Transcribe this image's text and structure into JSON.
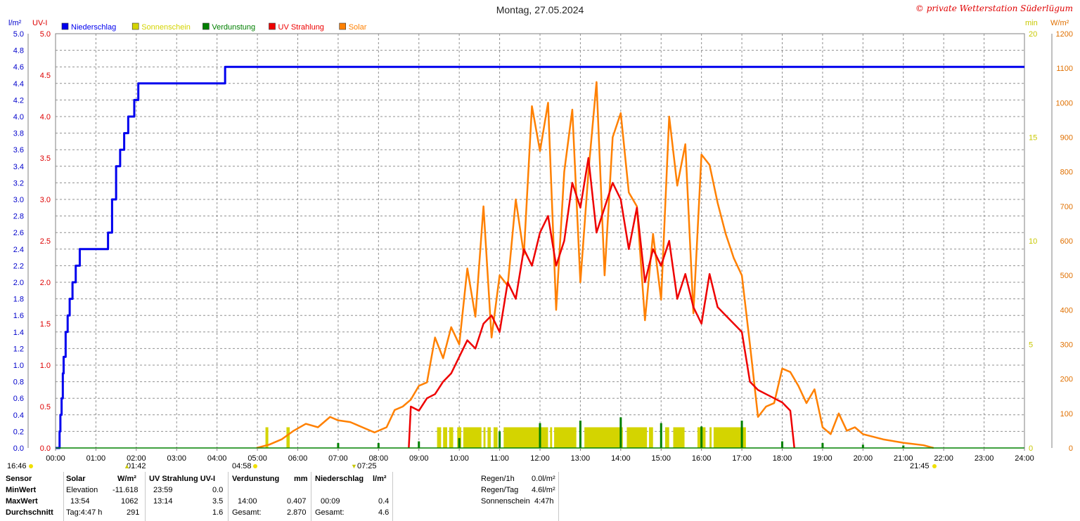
{
  "title": "Montag, 27.05.2024",
  "copyright": "© private Wetterstation Süderlügum",
  "legend": [
    {
      "label": "Niederschlag",
      "color": "#0000ee"
    },
    {
      "label": "Sonnenschein",
      "color": "#d4d400"
    },
    {
      "label": "Verdunstung",
      "color": "#008000"
    },
    {
      "label": "UV Strahlung",
      "color": "#ee0000"
    },
    {
      "label": "Solar",
      "color": "#ff8000"
    }
  ],
  "axis_units": {
    "left1": "l/m²",
    "left2": "UV-I",
    "right1": "min",
    "right2": "W/m²"
  },
  "sun_markers": {
    "left_label": "16:46",
    "rise_label": "04:58",
    "set_label": "21:45",
    "moon1": "01:42",
    "moon2": "07:25"
  },
  "chart_data": {
    "type": "line",
    "x_axis": {
      "range": [
        "00:00",
        "24:00"
      ],
      "ticks": [
        "00:00",
        "01:00",
        "02:00",
        "03:00",
        "04:00",
        "05:00",
        "06:00",
        "07:00",
        "08:00",
        "09:00",
        "10:00",
        "11:00",
        "12:00",
        "13:00",
        "14:00",
        "15:00",
        "16:00",
        "17:00",
        "18:00",
        "19:00",
        "20:00",
        "21:00",
        "22:00",
        "23:00",
        "24:00"
      ]
    },
    "y_axes": {
      "precip": {
        "unit": "l/m²",
        "range": [
          0,
          5.0
        ],
        "ticks": [
          "0.0",
          "0.2",
          "0.4",
          "0.6",
          "0.8",
          "1.0",
          "1.2",
          "1.4",
          "1.6",
          "1.8",
          "2.0",
          "2.2",
          "2.4",
          "2.6",
          "2.8",
          "3.0",
          "3.2",
          "3.4",
          "3.6",
          "3.8",
          "4.0",
          "4.2",
          "4.4",
          "4.6",
          "4.8",
          "5.0"
        ]
      },
      "uv": {
        "unit": "UV-I",
        "range": [
          0,
          5.0
        ],
        "ticks": [
          "0.0",
          "0.5",
          "1.0",
          "1.5",
          "2.0",
          "2.5",
          "3.0",
          "3.5",
          "4.0",
          "4.5",
          "5.0"
        ]
      },
      "sunshine": {
        "unit": "min",
        "range": [
          0,
          20
        ],
        "ticks": [
          "0",
          "5",
          "10",
          "15",
          "20"
        ]
      },
      "solar": {
        "unit": "W/m²",
        "range": [
          0,
          1200
        ],
        "ticks": [
          "0",
          "100",
          "200",
          "300",
          "400",
          "500",
          "600",
          "700",
          "800",
          "900",
          "1000",
          "1100",
          "1200"
        ]
      }
    },
    "grid": true,
    "series": [
      {
        "name": "Niederschlag",
        "axis": "precip",
        "color": "#0000ee",
        "step": true,
        "x": [
          0.0,
          0.1,
          0.12,
          0.15,
          0.18,
          0.2,
          0.25,
          0.3,
          0.35,
          0.42,
          0.5,
          0.6,
          0.75,
          1.3,
          1.4,
          1.5,
          1.6,
          1.7,
          1.8,
          1.95,
          2.05,
          2.15,
          4.15,
          4.2,
          24.0
        ],
        "y": [
          0.0,
          0.2,
          0.4,
          0.6,
          0.9,
          1.1,
          1.4,
          1.6,
          1.8,
          2.0,
          2.2,
          2.4,
          2.4,
          2.6,
          3.0,
          3.4,
          3.6,
          3.8,
          4.0,
          4.2,
          4.4,
          4.4,
          4.4,
          4.6,
          4.6
        ]
      },
      {
        "name": "Solar",
        "axis": "solar",
        "color": "#ff8000",
        "x": [
          4.98,
          5.3,
          5.6,
          5.9,
          6.2,
          6.5,
          6.8,
          7.0,
          7.3,
          7.6,
          7.9,
          8.2,
          8.4,
          8.6,
          8.8,
          9.0,
          9.2,
          9.4,
          9.6,
          9.8,
          10.0,
          10.2,
          10.4,
          10.6,
          10.8,
          11.0,
          11.2,
          11.4,
          11.6,
          11.8,
          12.0,
          12.2,
          12.4,
          12.6,
          12.8,
          13.0,
          13.2,
          13.4,
          13.6,
          13.8,
          14.0,
          14.2,
          14.4,
          14.6,
          14.8,
          15.0,
          15.2,
          15.4,
          15.6,
          15.8,
          16.0,
          16.2,
          16.4,
          16.6,
          16.8,
          17.0,
          17.2,
          17.4,
          17.6,
          17.8,
          18.0,
          18.2,
          18.4,
          18.6,
          18.8,
          19.0,
          19.2,
          19.4,
          19.6,
          19.8,
          20.0,
          20.5,
          21.0,
          21.5,
          21.75
        ],
        "y": [
          0,
          10,
          25,
          50,
          70,
          60,
          90,
          80,
          75,
          60,
          45,
          60,
          110,
          120,
          140,
          180,
          190,
          320,
          260,
          350,
          300,
          520,
          380,
          700,
          320,
          500,
          470,
          720,
          560,
          990,
          860,
          1000,
          400,
          800,
          980,
          480,
          800,
          1060,
          500,
          900,
          970,
          740,
          700,
          370,
          620,
          430,
          960,
          760,
          880,
          390,
          850,
          820,
          710,
          620,
          550,
          500,
          300,
          90,
          120,
          130,
          230,
          220,
          180,
          130,
          170,
          60,
          40,
          100,
          50,
          60,
          40,
          25,
          15,
          8,
          0
        ]
      },
      {
        "name": "UV Strahlung",
        "axis": "uv",
        "color": "#ee0000",
        "x": [
          8.75,
          8.8,
          9.0,
          9.2,
          9.4,
          9.6,
          9.8,
          10.0,
          10.2,
          10.4,
          10.6,
          10.8,
          11.0,
          11.2,
          11.4,
          11.6,
          11.8,
          12.0,
          12.2,
          12.4,
          12.6,
          12.8,
          13.0,
          13.2,
          13.4,
          13.6,
          13.8,
          14.0,
          14.2,
          14.4,
          14.6,
          14.8,
          15.0,
          15.2,
          15.4,
          15.6,
          15.8,
          16.0,
          16.2,
          16.4,
          16.6,
          16.8,
          17.0,
          17.2,
          17.4,
          17.6,
          17.8,
          18.0,
          18.2,
          18.3
        ],
        "y": [
          0,
          0.5,
          0.45,
          0.6,
          0.65,
          0.8,
          0.9,
          1.1,
          1.3,
          1.2,
          1.5,
          1.6,
          1.4,
          2.0,
          1.8,
          2.4,
          2.2,
          2.6,
          2.8,
          2.2,
          2.5,
          3.2,
          2.9,
          3.5,
          2.6,
          2.9,
          3.2,
          3.0,
          2.4,
          2.9,
          2.0,
          2.4,
          2.2,
          2.5,
          1.8,
          2.1,
          1.7,
          1.5,
          2.1,
          1.7,
          1.6,
          1.5,
          1.4,
          0.8,
          0.7,
          0.65,
          0.6,
          0.55,
          0.45,
          0.0
        ]
      },
      {
        "name": "Sonnenschein",
        "axis": "sunshine",
        "color": "#d4d400",
        "bars": [
          [
            5.2,
            5.27,
            1.0
          ],
          [
            5.72,
            5.8,
            1.0
          ],
          [
            9.45,
            9.55,
            1.0
          ],
          [
            9.6,
            9.7,
            1.0
          ],
          [
            9.75,
            9.85,
            1.0
          ],
          [
            9.95,
            10.05,
            1.0
          ],
          [
            10.1,
            10.55,
            1.0
          ],
          [
            10.6,
            10.65,
            1.0
          ],
          [
            10.7,
            10.78,
            1.0
          ],
          [
            10.85,
            10.95,
            1.0
          ],
          [
            11.1,
            12.2,
            1.0
          ],
          [
            12.25,
            12.3,
            1.0
          ],
          [
            12.35,
            12.9,
            1.0
          ],
          [
            13.1,
            14.05,
            1.0
          ],
          [
            14.15,
            14.65,
            1.0
          ],
          [
            14.7,
            14.8,
            1.0
          ],
          [
            15.1,
            15.2,
            1.0
          ],
          [
            15.3,
            15.58,
            1.0
          ],
          [
            15.9,
            16.1,
            1.0
          ],
          [
            16.2,
            16.25,
            1.0
          ],
          [
            16.3,
            17.1,
            1.0
          ]
        ]
      },
      {
        "name": "Verdunstung",
        "axis": "uv",
        "color": "#008000",
        "bars": [
          [
            7.0,
            0.06
          ],
          [
            8.0,
            0.06
          ],
          [
            9.0,
            0.08
          ],
          [
            10.0,
            0.12
          ],
          [
            11.0,
            0.2
          ],
          [
            12.0,
            0.3
          ],
          [
            13.0,
            0.33
          ],
          [
            14.0,
            0.37
          ],
          [
            15.0,
            0.3
          ],
          [
            16.0,
            0.26
          ],
          [
            17.0,
            0.33
          ],
          [
            18.0,
            0.08
          ],
          [
            19.0,
            0.06
          ],
          [
            20.0,
            0.04
          ],
          [
            21.0,
            0.03
          ]
        ]
      }
    ]
  },
  "stats": {
    "headers": {
      "sensor": "Sensor",
      "solar": "Solar",
      "solar_unit": "W/m²",
      "uv": "UV Strahlung UV-I",
      "evap": "Verdunstung",
      "evap_unit": "mm",
      "precip": "Niederschlag",
      "precip_unit": "l/m²"
    },
    "rows": {
      "min": "MinWert",
      "max": "MaxWert",
      "avg": "Durchschnitt"
    },
    "solar": {
      "min_label": "Elevation",
      "min_val": "-11.618",
      "max_time": "13:54",
      "max_val": "1062",
      "avg_label": "Tag:4:47 h",
      "avg_val": "291"
    },
    "uv": {
      "min_time": "23:59",
      "min_val": "0.0",
      "max_time": "13:14",
      "max_val": "3.5",
      "avg_val": "1.6"
    },
    "evap": {
      "max_time": "14:00",
      "max_val": "0.407",
      "total_label": "Gesamt:",
      "total_val": "2.870"
    },
    "precip": {
      "max_time": "00:09",
      "max_val": "0.4",
      "total_label": "Gesamt:",
      "total_val": "4.6"
    },
    "summary": {
      "r1_label": "Regen/1h",
      "r1_val": "0.0l/m²",
      "r2_label": "Regen/Tag",
      "r2_val": "4.6l/m²",
      "r3_label": "Sonnenschein",
      "r3_val": "4:47h"
    }
  }
}
